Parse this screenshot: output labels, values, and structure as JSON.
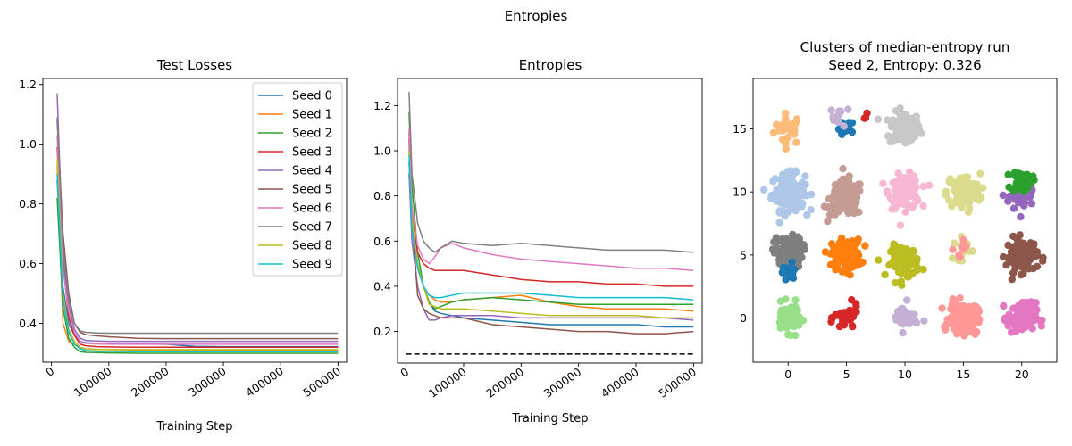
{
  "figure_title": "Entropies",
  "chart_data": [
    {
      "type": "line",
      "title": "Test Losses",
      "xlabel": "Training Step",
      "ylabel": "",
      "xlim": [
        -15000,
        515000
      ],
      "ylim": [
        0.27,
        1.22
      ],
      "xticks": [
        0,
        100000,
        200000,
        300000,
        400000,
        500000
      ],
      "xtick_labels": [
        "0",
        "100000",
        "200000",
        "300000",
        "400000",
        "500000"
      ],
      "yticks": [
        0.4,
        0.6,
        0.8,
        1.0,
        1.2
      ],
      "ytick_labels": [
        "0.4",
        "0.6",
        "0.8",
        "1.0",
        "1.2"
      ],
      "legend_position": "top-right",
      "x": [
        10000,
        20000,
        30000,
        40000,
        50000,
        60000,
        80000,
        100000,
        150000,
        200000,
        250000,
        300000,
        350000,
        400000,
        450000,
        500000
      ],
      "series": [
        {
          "name": "Seed 0",
          "color": "#1f77b4",
          "values": [
            0.88,
            0.52,
            0.4,
            0.36,
            0.34,
            0.335,
            0.333,
            0.332,
            0.331,
            0.33,
            0.323,
            0.322,
            0.322,
            0.322,
            0.322,
            0.322
          ]
        },
        {
          "name": "Seed 1",
          "color": "#ff7f0e",
          "values": [
            0.93,
            0.4,
            0.34,
            0.33,
            0.32,
            0.315,
            0.313,
            0.312,
            0.311,
            0.311,
            0.311,
            0.311,
            0.311,
            0.311,
            0.311,
            0.311
          ]
        },
        {
          "name": "Seed 2",
          "color": "#2ca02c",
          "values": [
            0.82,
            0.45,
            0.35,
            0.32,
            0.305,
            0.303,
            0.302,
            0.301,
            0.3,
            0.3,
            0.3,
            0.3,
            0.3,
            0.3,
            0.3,
            0.3
          ]
        },
        {
          "name": "Seed 3",
          "color": "#d62728",
          "values": [
            0.99,
            0.6,
            0.42,
            0.36,
            0.33,
            0.325,
            0.322,
            0.321,
            0.32,
            0.32,
            0.32,
            0.32,
            0.32,
            0.32,
            0.32,
            0.32
          ]
        },
        {
          "name": "Seed 4",
          "color": "#9467bd",
          "values": [
            1.17,
            0.62,
            0.46,
            0.38,
            0.35,
            0.343,
            0.341,
            0.34,
            0.34,
            0.34,
            0.34,
            0.34,
            0.34,
            0.34,
            0.34,
            0.34
          ]
        },
        {
          "name": "Seed 5",
          "color": "#8c564b",
          "values": [
            1.08,
            0.7,
            0.5,
            0.4,
            0.37,
            0.362,
            0.358,
            0.355,
            0.35,
            0.349,
            0.349,
            0.349,
            0.349,
            0.349,
            0.349,
            0.349
          ]
        },
        {
          "name": "Seed 6",
          "color": "#e377c2",
          "values": [
            1.03,
            0.58,
            0.44,
            0.37,
            0.34,
            0.333,
            0.331,
            0.33,
            0.33,
            0.33,
            0.33,
            0.33,
            0.33,
            0.33,
            0.33,
            0.33
          ]
        },
        {
          "name": "Seed 7",
          "color": "#7f7f7f",
          "values": [
            1.09,
            0.66,
            0.48,
            0.4,
            0.375,
            0.37,
            0.368,
            0.367,
            0.367,
            0.367,
            0.367,
            0.367,
            0.367,
            0.367,
            0.367,
            0.367
          ]
        },
        {
          "name": "Seed 8",
          "color": "#bcbd22",
          "values": [
            0.95,
            0.5,
            0.38,
            0.34,
            0.32,
            0.315,
            0.313,
            0.312,
            0.312,
            0.312,
            0.312,
            0.312,
            0.312,
            0.312,
            0.312,
            0.312
          ]
        },
        {
          "name": "Seed 9",
          "color": "#17becf",
          "values": [
            0.9,
            0.48,
            0.37,
            0.33,
            0.315,
            0.309,
            0.307,
            0.306,
            0.305,
            0.305,
            0.305,
            0.305,
            0.305,
            0.305,
            0.305,
            0.305
          ]
        }
      ]
    },
    {
      "type": "line",
      "title": "Entropies",
      "xlabel": "Training Step",
      "ylabel": "",
      "xlim": [
        -15000,
        515000
      ],
      "ylim": [
        0.06,
        1.32
      ],
      "xticks": [
        0,
        100000,
        200000,
        300000,
        400000,
        500000
      ],
      "xtick_labels": [
        "0",
        "100000",
        "200000",
        "300000",
        "400000",
        "500000"
      ],
      "yticks": [
        0.2,
        0.4,
        0.6,
        0.8,
        1.0,
        1.2
      ],
      "ytick_labels": [
        "0.2",
        "0.4",
        "0.6",
        "0.8",
        "1.0",
        "1.2"
      ],
      "reference_line": {
        "y": 0.1,
        "x_range": [
          0,
          500000
        ],
        "style": "dashed",
        "color": "#000000"
      },
      "x": [
        5000,
        10000,
        20000,
        30000,
        40000,
        50000,
        60000,
        80000,
        100000,
        150000,
        200000,
        250000,
        300000,
        350000,
        400000,
        450000,
        500000
      ],
      "series": [
        {
          "name": "Seed 0",
          "color": "#1f77b4",
          "values": [
            0.95,
            0.7,
            0.5,
            0.4,
            0.33,
            0.29,
            0.28,
            0.27,
            0.26,
            0.25,
            0.24,
            0.23,
            0.23,
            0.23,
            0.23,
            0.22,
            0.22
          ]
        },
        {
          "name": "Seed 1",
          "color": "#ff7f0e",
          "values": [
            1.0,
            0.75,
            0.48,
            0.4,
            0.36,
            0.34,
            0.33,
            0.33,
            0.34,
            0.35,
            0.36,
            0.33,
            0.31,
            0.3,
            0.3,
            0.3,
            0.29
          ]
        },
        {
          "name": "Seed 2",
          "color": "#2ca02c",
          "values": [
            1.17,
            0.85,
            0.55,
            0.4,
            0.33,
            0.3,
            0.31,
            0.33,
            0.34,
            0.35,
            0.34,
            0.33,
            0.32,
            0.32,
            0.32,
            0.32,
            0.32
          ]
        },
        {
          "name": "Seed 3",
          "color": "#d62728",
          "values": [
            1.05,
            0.7,
            0.55,
            0.5,
            0.48,
            0.47,
            0.47,
            0.47,
            0.47,
            0.45,
            0.43,
            0.42,
            0.42,
            0.41,
            0.41,
            0.4,
            0.4
          ]
        },
        {
          "name": "Seed 4",
          "color": "#9467bd",
          "values": [
            0.9,
            0.6,
            0.4,
            0.3,
            0.25,
            0.25,
            0.26,
            0.27,
            0.27,
            0.27,
            0.26,
            0.26,
            0.26,
            0.26,
            0.26,
            0.26,
            0.25
          ]
        },
        {
          "name": "Seed 5",
          "color": "#8c564b",
          "values": [
            1.08,
            0.7,
            0.36,
            0.3,
            0.28,
            0.27,
            0.26,
            0.26,
            0.26,
            0.23,
            0.22,
            0.21,
            0.2,
            0.2,
            0.19,
            0.19,
            0.2
          ]
        },
        {
          "name": "Seed 6",
          "color": "#e377c2",
          "values": [
            1.1,
            0.75,
            0.58,
            0.52,
            0.5,
            0.53,
            0.57,
            0.59,
            0.57,
            0.54,
            0.52,
            0.51,
            0.5,
            0.49,
            0.48,
            0.48,
            0.47
          ]
        },
        {
          "name": "Seed 7",
          "color": "#7f7f7f",
          "values": [
            1.26,
            0.9,
            0.68,
            0.6,
            0.57,
            0.55,
            0.57,
            0.6,
            0.59,
            0.58,
            0.59,
            0.58,
            0.57,
            0.56,
            0.56,
            0.56,
            0.55
          ]
        },
        {
          "name": "Seed 8",
          "color": "#bcbd22",
          "values": [
            1.0,
            0.7,
            0.5,
            0.4,
            0.32,
            0.31,
            0.3,
            0.3,
            0.3,
            0.29,
            0.28,
            0.27,
            0.27,
            0.27,
            0.27,
            0.26,
            0.26
          ]
        },
        {
          "name": "Seed 9",
          "color": "#17becf",
          "values": [
            0.98,
            0.65,
            0.48,
            0.4,
            0.36,
            0.35,
            0.35,
            0.36,
            0.37,
            0.37,
            0.37,
            0.36,
            0.35,
            0.35,
            0.35,
            0.35,
            0.34
          ]
        }
      ]
    },
    {
      "type": "scatter",
      "title": "Clusters of median-entropy run",
      "subtitle": "Seed 2, Entropy: 0.326",
      "xlabel": "",
      "ylabel": "",
      "xlim": [
        -3,
        23
      ],
      "ylim": [
        -3.5,
        19
      ],
      "xticks": [
        0,
        5,
        10,
        15,
        20
      ],
      "xtick_labels": [
        "0",
        "5",
        "10",
        "15",
        "20"
      ],
      "yticks": [
        0,
        5,
        10,
        15
      ],
      "ytick_labels": [
        "0",
        "5",
        "10",
        "15"
      ],
      "point_radius_note": "filled circles",
      "clusters": [
        {
          "center": [
            0,
            15
          ],
          "color": "#ffbb78",
          "n": 28,
          "spread": 1.1
        },
        {
          "center": [
            5,
            15
          ],
          "color": "#1f77b4",
          "n": 14,
          "spread": 0.6
        },
        {
          "center": [
            4.5,
            16
          ],
          "color": "#c5b0d5",
          "n": 12,
          "spread": 0.7
        },
        {
          "center": [
            6.5,
            16
          ],
          "color": "#d62728",
          "n": 3,
          "spread": 0.3
        },
        {
          "center": [
            10,
            15
          ],
          "color": "#c7c7c7",
          "n": 120,
          "spread": 1.2
        },
        {
          "center": [
            0,
            10
          ],
          "color": "#aec7e8",
          "n": 140,
          "spread": 1.3
        },
        {
          "center": [
            5,
            9.5
          ],
          "color": "#c49c94",
          "n": 130,
          "spread": 1.3
        },
        {
          "center": [
            10,
            10
          ],
          "color": "#f7b6d2",
          "n": 110,
          "spread": 1.2
        },
        {
          "center": [
            15,
            10
          ],
          "color": "#dbdb8d",
          "n": 100,
          "spread": 1.3
        },
        {
          "center": [
            20,
            9.6
          ],
          "color": "#9467bd",
          "n": 40,
          "spread": 1.0
        },
        {
          "center": [
            20,
            10.9
          ],
          "color": "#2ca02c",
          "n": 55,
          "spread": 0.8
        },
        {
          "center": [
            0,
            5.2
          ],
          "color": "#7f7f7f",
          "n": 90,
          "spread": 1.1
        },
        {
          "center": [
            0,
            3.6
          ],
          "color": "#1f77b4",
          "n": 20,
          "spread": 0.7
        },
        {
          "center": [
            5,
            5
          ],
          "color": "#ff7f0e",
          "n": 130,
          "spread": 1.1
        },
        {
          "center": [
            10,
            4.5
          ],
          "color": "#bcbd22",
          "n": 100,
          "spread": 1.1
        },
        {
          "center": [
            15,
            5.5
          ],
          "color": "#dbdb8d",
          "n": 14,
          "spread": 0.8
        },
        {
          "center": [
            14.5,
            5.5
          ],
          "color": "#ff9896",
          "n": 8,
          "spread": 0.8
        },
        {
          "center": [
            20,
            5
          ],
          "color": "#8c564b",
          "n": 100,
          "spread": 1.2
        },
        {
          "center": [
            0,
            0
          ],
          "color": "#98df8a",
          "n": 55,
          "spread": 1.0
        },
        {
          "center": [
            5,
            0
          ],
          "color": "#d62728",
          "n": 40,
          "spread": 0.9
        },
        {
          "center": [
            10,
            0
          ],
          "color": "#c5b0d5",
          "n": 35,
          "spread": 1.0
        },
        {
          "center": [
            15,
            0
          ],
          "color": "#ff9896",
          "n": 140,
          "spread": 1.1
        },
        {
          "center": [
            20,
            0
          ],
          "color": "#e377c2",
          "n": 110,
          "spread": 1.1
        }
      ]
    }
  ]
}
